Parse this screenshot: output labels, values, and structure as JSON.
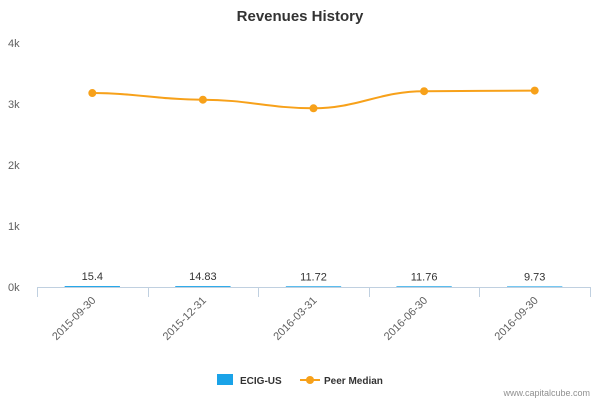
{
  "chart_data": {
    "type": "line",
    "title": "Revenues History",
    "categories": [
      "2015-09-30",
      "2015-12-31",
      "2016-03-31",
      "2016-06-30",
      "2016-09-30"
    ],
    "ylim": [
      0,
      4000
    ],
    "yticks": [
      {
        "value": 0,
        "label": "0k"
      },
      {
        "value": 1000,
        "label": "1k"
      },
      {
        "value": 2000,
        "label": "2k"
      },
      {
        "value": 3000,
        "label": "3k"
      },
      {
        "value": 4000,
        "label": "4k"
      }
    ],
    "grid": false,
    "legend_position": "bottom-center",
    "series": [
      {
        "name": "ECIG-US",
        "type": "bar",
        "color": "#1aa3e8",
        "values": [
          15.4,
          14.83,
          11.72,
          11.76,
          9.73
        ],
        "data_labels": [
          "15.4",
          "14.83",
          "11.72",
          "11.76",
          "9.73"
        ]
      },
      {
        "name": "Peer Median",
        "type": "line",
        "color": "#f7a11a",
        "values": [
          3180,
          3070,
          2930,
          3210,
          3220
        ]
      }
    ]
  },
  "credit": "www.capitalcube.com"
}
